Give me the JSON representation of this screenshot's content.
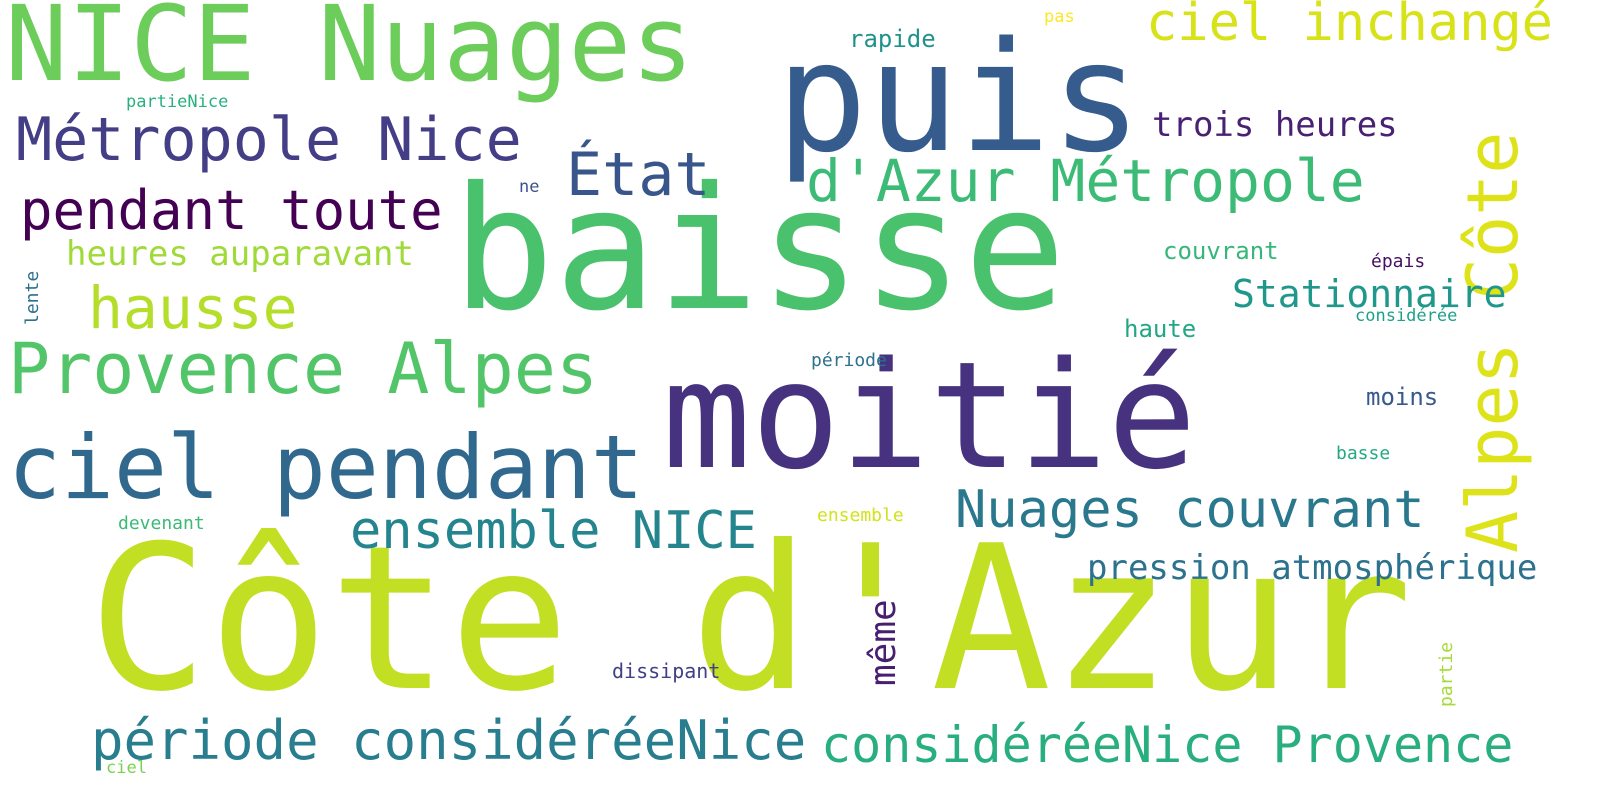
{
  "words": [
    {
      "text": "Côte d'Azur",
      "color": "#c2df23"
    },
    {
      "text": "baisse",
      "color": "#4ac16d"
    },
    {
      "text": "moitié",
      "color": "#46327e"
    },
    {
      "text": "puis",
      "color": "#365c8d"
    },
    {
      "text": "NICE Nuages",
      "color": "#6ccd5a"
    },
    {
      "text": "ciel pendant",
      "color": "#31688e"
    },
    {
      "text": "Alpes Côte",
      "color": "#dde318"
    },
    {
      "text": "Provence Alpes",
      "color": "#52c569"
    },
    {
      "text": "Métropole Nice",
      "color": "#433e85"
    },
    {
      "text": "d'Azur Métropole",
      "color": "#3bbb75"
    },
    {
      "text": "période considéréeNice",
      "color": "#287d8e"
    },
    {
      "text": "considéréeNice Provence",
      "color": "#29af7f"
    },
    {
      "text": "pendant toute",
      "color": "#440154"
    },
    {
      "text": "ensemble NICE",
      "color": "#25858e"
    },
    {
      "text": "Nuages couvrant",
      "color": "#2a788e"
    },
    {
      "text": "hausse",
      "color": "#b5de2b"
    },
    {
      "text": "État",
      "color": "#39568c"
    },
    {
      "text": "ciel inchangé",
      "color": "#d8e219"
    },
    {
      "text": "pression atmosphérique",
      "color": "#2c728e"
    },
    {
      "text": "Stationnaire",
      "color": "#1f988b"
    },
    {
      "text": "heures auparavant",
      "color": "#a0da39"
    },
    {
      "text": "trois heures",
      "color": "#482173"
    },
    {
      "text": "même",
      "color": "#481f70"
    },
    {
      "text": "couvrant",
      "color": "#35b779"
    },
    {
      "text": "moins",
      "color": "#38598c"
    },
    {
      "text": "haute",
      "color": "#22a785"
    },
    {
      "text": "rapide",
      "color": "#20928c"
    },
    {
      "text": "dissipant",
      "color": "#423f85"
    },
    {
      "text": "devenant",
      "color": "#3aba76"
    },
    {
      "text": "ensemble",
      "color": "#d2e21b"
    },
    {
      "text": "basse",
      "color": "#23a983"
    },
    {
      "text": "partieNice",
      "color": "#2ab07f"
    },
    {
      "text": "période",
      "color": "#2c718e"
    },
    {
      "text": "épais",
      "color": "#471063"
    },
    {
      "text": "considérée",
      "color": "#1fa088"
    },
    {
      "text": "lente",
      "color": "#2d708e"
    },
    {
      "text": "partie",
      "color": "#a5db36"
    },
    {
      "text": "pas",
      "color": "#fde725"
    },
    {
      "text": "ne",
      "color": "#3b528b"
    },
    {
      "text": "ciel",
      "color": "#7ad151"
    }
  ]
}
